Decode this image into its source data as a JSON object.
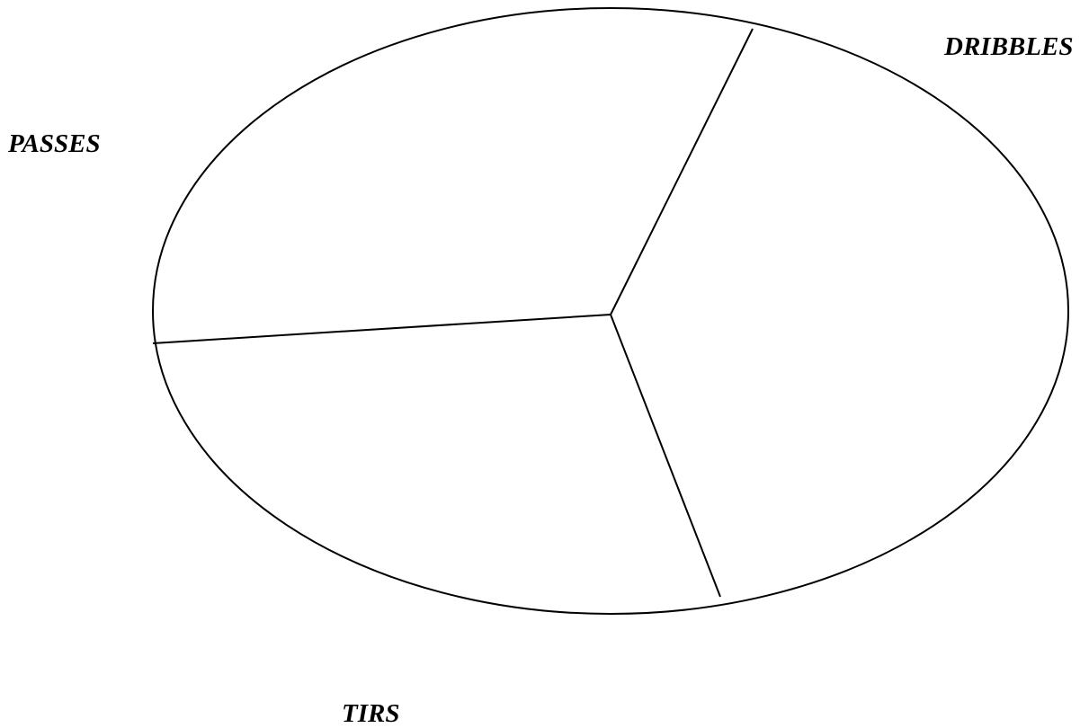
{
  "diagram": {
    "labels": {
      "passes": "PASSES",
      "dribbles": "DRIBBLES",
      "tirs": "TIRS"
    },
    "colors": {
      "stroke": "#000000",
      "background": "#ffffff",
      "text": "#000000"
    }
  }
}
